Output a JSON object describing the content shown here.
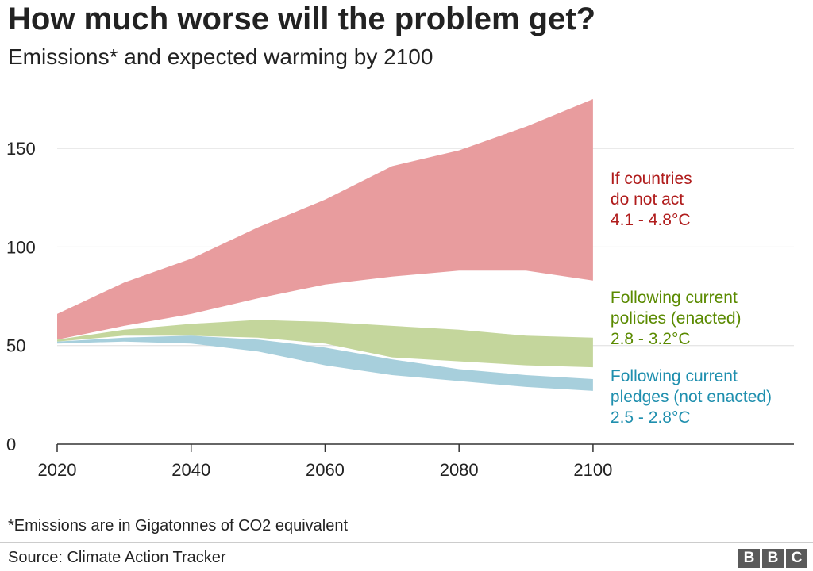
{
  "title": "How much worse will the problem get?",
  "subtitle": "Emissions* and expected warming by 2100",
  "footnote": "*Emissions are in Gigatonnes of CO2 equivalent",
  "source": "Source: Climate Action Tracker",
  "logo": [
    "B",
    "B",
    "C"
  ],
  "chart_data": {
    "type": "area",
    "x": [
      2020,
      2030,
      2040,
      2050,
      2060,
      2070,
      2080,
      2090,
      2100
    ],
    "xticks": [
      2020,
      2040,
      2060,
      2080,
      2100
    ],
    "yticks": [
      0,
      50,
      100,
      150
    ],
    "xlim": [
      2020,
      2130
    ],
    "ylim": [
      0,
      175
    ],
    "grid": true,
    "series": [
      {
        "name": [
          "If countries",
          "do not act",
          "4.1 - 4.8°C"
        ],
        "color": "#e89c9e",
        "label_color": "#b01c1c",
        "upper": [
          66,
          82,
          94,
          110,
          124,
          141,
          149,
          161,
          175
        ],
        "lower": [
          53,
          60,
          66,
          74,
          81,
          85,
          88,
          88,
          83
        ]
      },
      {
        "name": [
          "Following current",
          "policies (enacted)",
          "2.8 - 3.2°C"
        ],
        "color": "#c4d69c",
        "label_color": "#5a8a00",
        "upper": [
          53,
          58,
          61,
          63,
          62,
          60,
          58,
          55,
          54
        ],
        "lower": [
          52,
          55,
          55,
          54,
          51,
          44,
          42,
          40,
          39
        ]
      },
      {
        "name": [
          "Following current",
          "pledges (not enacted)",
          "2.5 - 2.8°C"
        ],
        "color": "#a7cfdc",
        "label_color": "#1f8fae",
        "upper": [
          52,
          54,
          55,
          53,
          49,
          43,
          38,
          35,
          33
        ],
        "lower": [
          51,
          52,
          51,
          47,
          40,
          35,
          32,
          29,
          27
        ]
      }
    ]
  }
}
